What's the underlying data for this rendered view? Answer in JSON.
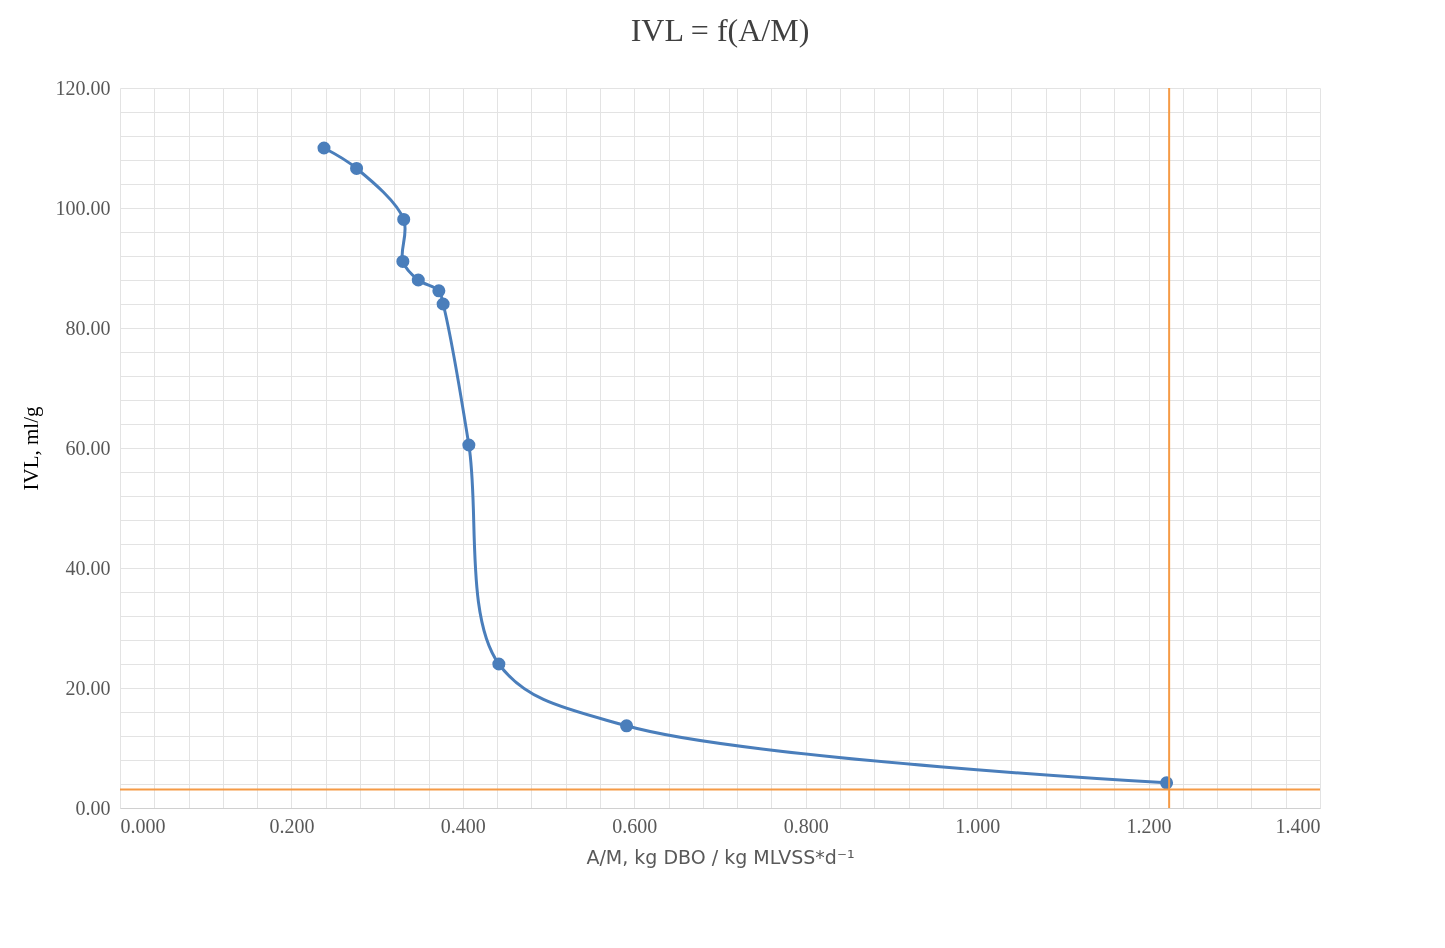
{
  "chart_data": {
    "type": "line",
    "title": "IVL = f(A/M)",
    "xlabel": "A/M, kg DBO / kg MLVSS*d⁻¹",
    "ylabel": "IVL, ml/g",
    "series": [
      {
        "color": "#4a7ebb",
        "x": [
          0.238,
          0.276,
          0.331,
          0.33,
          0.348,
          0.372,
          0.377,
          0.407,
          0.442,
          0.591,
          1.221
        ],
        "values": [
          110.0,
          106.6,
          98.1,
          91.1,
          88.0,
          86.2,
          84.0,
          60.5,
          24.0,
          13.7,
          4.2
        ]
      }
    ],
    "marker": "circle",
    "line_style": "solid",
    "grid": true,
    "xlim": [
      0,
      1.4
    ],
    "ylim": [
      0,
      120
    ],
    "xticks": [
      {
        "value": 0,
        "label": "0.000"
      },
      {
        "value": 0.04,
        "label": null
      },
      {
        "value": 0.08,
        "label": null
      },
      {
        "value": 0.12,
        "label": null
      },
      {
        "value": 0.16,
        "label": null
      },
      {
        "value": 0.2,
        "label": "0.200"
      },
      {
        "value": 0.24,
        "label": null
      },
      {
        "value": 0.28,
        "label": null
      },
      {
        "value": 0.32,
        "label": null
      },
      {
        "value": 0.36,
        "label": null
      },
      {
        "value": 0.4,
        "label": "0.400"
      },
      {
        "value": 0.44,
        "label": null
      },
      {
        "value": 0.48,
        "label": null
      },
      {
        "value": 0.52,
        "label": null
      },
      {
        "value": 0.56,
        "label": null
      },
      {
        "value": 0.6,
        "label": "0.600"
      },
      {
        "value": 0.64,
        "label": null
      },
      {
        "value": 0.68,
        "label": null
      },
      {
        "value": 0.72,
        "label": null
      },
      {
        "value": 0.76,
        "label": null
      },
      {
        "value": 0.8,
        "label": "0.800"
      },
      {
        "value": 0.84,
        "label": null
      },
      {
        "value": 0.88,
        "label": null
      },
      {
        "value": 0.92,
        "label": null
      },
      {
        "value": 0.96,
        "label": null
      },
      {
        "value": 1.0,
        "label": "1.000"
      },
      {
        "value": 1.04,
        "label": null
      },
      {
        "value": 1.08,
        "label": null
      },
      {
        "value": 1.12,
        "label": null
      },
      {
        "value": 1.16,
        "label": null
      },
      {
        "value": 1.2,
        "label": "1.200"
      },
      {
        "value": 1.24,
        "label": null
      },
      {
        "value": 1.28,
        "label": null
      },
      {
        "value": 1.32,
        "label": null
      },
      {
        "value": 1.36,
        "label": null
      },
      {
        "value": 1.4,
        "label": "1.400"
      }
    ],
    "yticks": [
      {
        "value": 0,
        "label": "0.00"
      },
      {
        "value": 4,
        "label": null
      },
      {
        "value": 8,
        "label": null
      },
      {
        "value": 12,
        "label": null
      },
      {
        "value": 16,
        "label": null
      },
      {
        "value": 20,
        "label": "20.00"
      },
      {
        "value": 24,
        "label": null
      },
      {
        "value": 28,
        "label": null
      },
      {
        "value": 32,
        "label": null
      },
      {
        "value": 36,
        "label": null
      },
      {
        "value": 40,
        "label": "40.00"
      },
      {
        "value": 44,
        "label": null
      },
      {
        "value": 48,
        "label": null
      },
      {
        "value": 52,
        "label": null
      },
      {
        "value": 56,
        "label": null
      },
      {
        "value": 60,
        "label": "60.00"
      },
      {
        "value": 64,
        "label": null
      },
      {
        "value": 68,
        "label": null
      },
      {
        "value": 72,
        "label": null
      },
      {
        "value": 76,
        "label": null
      },
      {
        "value": 80,
        "label": "80.00"
      },
      {
        "value": 84,
        "label": null
      },
      {
        "value": 88,
        "label": null
      },
      {
        "value": 92,
        "label": null
      },
      {
        "value": 96,
        "label": null
      },
      {
        "value": 100,
        "label": "100.00"
      },
      {
        "value": 104,
        "label": null
      },
      {
        "value": 108,
        "label": null
      },
      {
        "value": 112,
        "label": null
      },
      {
        "value": 116,
        "label": null
      },
      {
        "value": 120,
        "label": "120.00"
      }
    ],
    "ref_lines": [
      {
        "axis": "x",
        "value": 1.224,
        "color": "#f59a45"
      },
      {
        "axis": "y",
        "value": 3.1,
        "color": "#f59a45"
      }
    ]
  }
}
